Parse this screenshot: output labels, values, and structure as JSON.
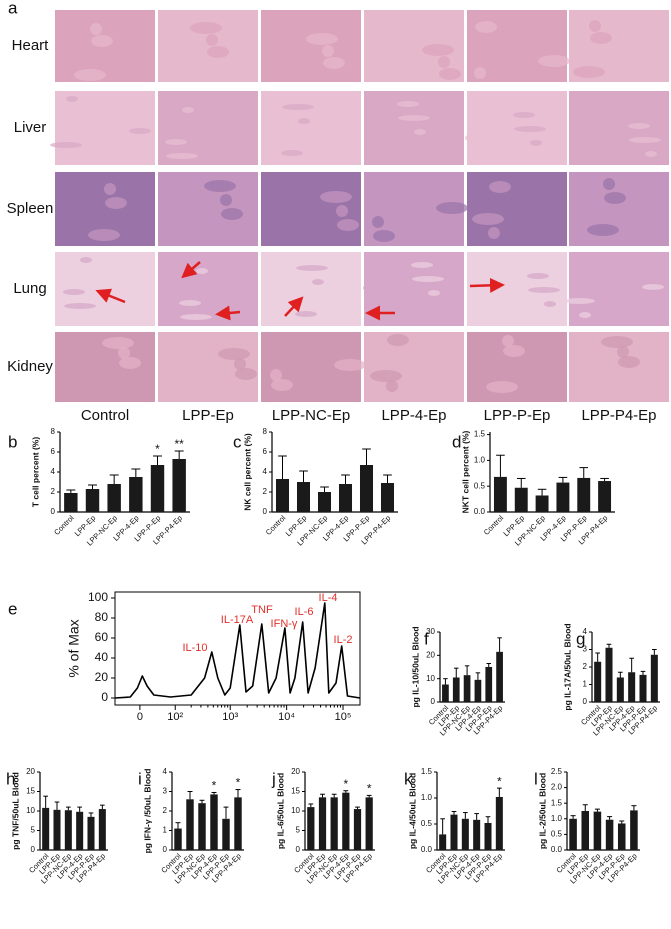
{
  "histology": {
    "panel": "a",
    "rows": [
      "Heart",
      "Liver",
      "Spleen",
      "Lung",
      "Kidney"
    ],
    "columns": [
      "Control",
      "LPP-Ep",
      "LPP-NC-Ep",
      "LPP-4-Ep",
      "LPP-P-Ep",
      "LPP-P4-Ep"
    ]
  },
  "chart_data": [
    {
      "type": "bar",
      "panel": "b",
      "ylabel": "T cell percent (%)",
      "categories": [
        "Control",
        "LPP-Ep",
        "LPP-NC-Ep",
        "LPP-4-Ep",
        "LPP-P-Ep",
        "LPP-P4-Ep"
      ],
      "values": [
        1.9,
        2.3,
        2.8,
        3.5,
        4.7,
        5.3
      ],
      "errors": [
        0.3,
        0.4,
        0.9,
        0.8,
        0.9,
        0.8
      ],
      "significance": [
        null,
        null,
        null,
        null,
        "*",
        "**"
      ],
      "ylim": [
        0,
        8
      ],
      "yticks": [
        0,
        2,
        4,
        6,
        8
      ],
      "color": "#1a1a1a"
    },
    {
      "type": "bar",
      "panel": "c",
      "ylabel": "NK cell percent (%)",
      "categories": [
        "Control",
        "LPP-Ep",
        "LPP-NC-Ep",
        "LPP-4-Ep",
        "LPP-P-Ep",
        "LPP-P4-Ep"
      ],
      "values": [
        3.3,
        3.0,
        2.0,
        2.8,
        4.7,
        2.9
      ],
      "errors": [
        2.3,
        1.1,
        0.5,
        0.9,
        1.6,
        0.8
      ],
      "significance": [
        null,
        null,
        null,
        null,
        null,
        null
      ],
      "ylim": [
        0,
        8
      ],
      "yticks": [
        0,
        2,
        4,
        6,
        8
      ],
      "color": "#1a1a1a"
    },
    {
      "type": "bar",
      "panel": "d",
      "ylabel": "NKT cell percent (%)",
      "categories": [
        "Control",
        "LPP-Ep",
        "LPP-NC-Ep",
        "LPP-4-Ep",
        "LPP-P-Ep",
        "LPP-P4-Ep"
      ],
      "values": [
        0.68,
        0.47,
        0.32,
        0.57,
        0.66,
        0.6
      ],
      "errors": [
        0.42,
        0.18,
        0.12,
        0.1,
        0.2,
        0.05
      ],
      "significance": [
        null,
        null,
        null,
        null,
        null,
        null
      ],
      "ylim": [
        0,
        1.55
      ],
      "yticks": [
        {
          "value": 0,
          "label": "0.0"
        },
        {
          "value": 0.5,
          "label": "0.5"
        },
        {
          "value": 1,
          "label": "1.0"
        },
        {
          "value": 1.5,
          "label": "1.5"
        }
      ],
      "color": "#1a1a1a"
    },
    {
      "type": "line",
      "panel": "e",
      "ylabel": "% of Max",
      "xscale": "logicle",
      "x": [
        -60,
        -20,
        -5,
        5,
        15,
        30,
        80,
        200,
        350,
        470,
        600,
        800,
        1000,
        1480,
        1900,
        2500,
        3630,
        4800,
        6500,
        9300,
        11500,
        14000,
        19300,
        24000,
        32000,
        47500,
        56000,
        75000,
        94700,
        120000,
        200000
      ],
      "values": [
        0,
        1,
        10,
        22,
        12,
        3,
        1,
        3,
        20,
        46,
        20,
        3,
        10,
        73,
        6,
        12,
        74,
        5,
        20,
        70,
        5,
        20,
        76,
        5,
        30,
        95,
        5,
        15,
        52,
        2,
        0
      ],
      "peak_labels": [
        "IL-10",
        "IL-17A",
        "TNF",
        "IFN-γ",
        "IL-6",
        "IL-4",
        "IL-2"
      ],
      "peak_label_color": "#e0302a",
      "xlim": [
        -60,
        200000
      ],
      "xticks": [
        0,
        {
          "value": 100,
          "label": "10²"
        },
        {
          "value": 1000,
          "label": "10³"
        },
        {
          "value": 10000,
          "label": "10⁴"
        },
        {
          "value": 100000,
          "label": "10⁵"
        }
      ],
      "ylim": [
        -7,
        106
      ],
      "yticks": [
        0,
        20,
        40,
        60,
        80,
        100
      ],
      "color": "#000000"
    },
    {
      "type": "bar",
      "panel": "f",
      "ylabel": "pg IL-10/50uL Blood",
      "categories": [
        "Control",
        "LPP-Ep",
        "LPP-NC-Ep",
        "LPP-4-Ep",
        "LPP-P-Ep",
        "LPP-P4-Ep"
      ],
      "values": [
        7.5,
        10.5,
        11.5,
        9.5,
        15,
        21.5
      ],
      "errors": [
        2.5,
        4,
        4,
        3,
        1.5,
        6
      ],
      "significance": [
        null,
        null,
        null,
        null,
        null,
        null
      ],
      "ylim": [
        0,
        30
      ],
      "yticks": [
        0,
        10,
        20,
        30
      ],
      "color": "#1a1a1a"
    },
    {
      "type": "bar",
      "panel": "g",
      "ylabel": "pg IL-17A/50uL Blood",
      "categories": [
        "Control",
        "LPP-Ep",
        "LPP-NC-Ep",
        "LPP-4-Ep",
        "LPP-P-Ep",
        "LPP-P4-Ep"
      ],
      "values": [
        2.3,
        3.1,
        1.4,
        1.7,
        1.55,
        2.7
      ],
      "errors": [
        0.5,
        0.2,
        0.3,
        0.8,
        0.2,
        0.3
      ],
      "significance": [
        null,
        null,
        null,
        null,
        null,
        null
      ],
      "ylim": [
        0,
        4
      ],
      "yticks": [
        0,
        1,
        2,
        3,
        4
      ],
      "color": "#1a1a1a"
    },
    {
      "type": "bar",
      "panel": "h",
      "ylabel": "pg TNF/50uL Blood",
      "categories": [
        "Control",
        "LPP-Ep",
        "LPP-NC-Ep",
        "LPP-4-Ep",
        "LPP-P-Ep",
        "LPP-P4-Ep"
      ],
      "values": [
        10.8,
        10.3,
        10.2,
        9.8,
        8.5,
        10.5
      ],
      "errors": [
        3,
        2,
        0.8,
        1.2,
        1,
        1
      ],
      "significance": [
        null,
        null,
        null,
        null,
        null,
        null
      ],
      "ylim": [
        0,
        20
      ],
      "yticks": [
        0,
        5,
        10,
        15,
        20
      ],
      "color": "#1a1a1a"
    },
    {
      "type": "bar",
      "panel": "i",
      "ylabel": "pg IFN-γ /50uL Blood",
      "categories": [
        "Control",
        "LPP-Ep",
        "LPP-NC-Ep",
        "LPP-4-Ep",
        "LPP-P-Ep",
        "LPP-P4-Ep"
      ],
      "values": [
        1.1,
        2.6,
        2.4,
        2.85,
        1.6,
        2.7
      ],
      "errors": [
        0.3,
        0.4,
        0.15,
        0.1,
        0.6,
        0.4
      ],
      "significance": [
        null,
        null,
        null,
        "*",
        null,
        "*"
      ],
      "ylim": [
        0,
        4
      ],
      "yticks": [
        0,
        1,
        2,
        3,
        4
      ],
      "color": "#1a1a1a"
    },
    {
      "type": "bar",
      "panel": "j",
      "ylabel": "pg IL-6/50uL Blood",
      "categories": [
        "Control",
        "LPP-Ep",
        "LPP-NC-Ep",
        "LPP-4-Ep",
        "LPP-P-Ep",
        "LPP-P4-Ep"
      ],
      "values": [
        11,
        13.5,
        13.5,
        14.7,
        10.5,
        13.5
      ],
      "errors": [
        0.8,
        0.8,
        0.8,
        0.5,
        0.5,
        0.5
      ],
      "significance": [
        null,
        null,
        null,
        "*",
        null,
        "*"
      ],
      "ylim": [
        0,
        20
      ],
      "yticks": [
        0,
        5,
        10,
        15,
        20
      ],
      "color": "#1a1a1a"
    },
    {
      "type": "bar",
      "panel": "k",
      "ylabel": "pg IL-4/50uL Blood",
      "categories": [
        "Control",
        "LPP-Ep",
        "LPP-NC-Ep",
        "LPP-4-Ep",
        "LPP-P-Ep",
        "LPP-P4-Ep"
      ],
      "values": [
        0.3,
        0.68,
        0.6,
        0.58,
        0.52,
        1.02
      ],
      "errors": [
        0.3,
        0.06,
        0.12,
        0.12,
        0.12,
        0.17
      ],
      "significance": [
        null,
        null,
        null,
        null,
        null,
        "*"
      ],
      "ylim": [
        0,
        1.5
      ],
      "yticks": [
        {
          "value": 0,
          "label": "0.0"
        },
        {
          "value": 0.5,
          "label": "0.5"
        },
        {
          "value": 1,
          "label": "1.0"
        },
        {
          "value": 1.5,
          "label": "1.5"
        }
      ],
      "color": "#1a1a1a"
    },
    {
      "type": "bar",
      "panel": "l",
      "ylabel": "pg IL-2/50uL Blood",
      "categories": [
        "Control",
        "LPP-Ep",
        "LPP-NC-Ep",
        "LPP-4-Ep",
        "LPP-P-Ep",
        "LPP-P4-Ep"
      ],
      "values": [
        1.0,
        1.25,
        1.23,
        0.97,
        0.85,
        1.27
      ],
      "errors": [
        0.1,
        0.2,
        0.08,
        0.1,
        0.08,
        0.15
      ],
      "significance": [
        null,
        null,
        null,
        null,
        null,
        null
      ],
      "ylim": [
        0,
        2.5
      ],
      "yticks": [
        {
          "value": 0,
          "label": "0.0"
        },
        {
          "value": 0.5,
          "label": "0.5"
        },
        {
          "value": 1,
          "label": "1.0"
        },
        {
          "value": 1.5,
          "label": "1.5"
        },
        {
          "value": 2,
          "label": "2.0"
        },
        {
          "value": 2.5,
          "label": "2.5"
        }
      ],
      "color": "#1a1a1a"
    }
  ]
}
